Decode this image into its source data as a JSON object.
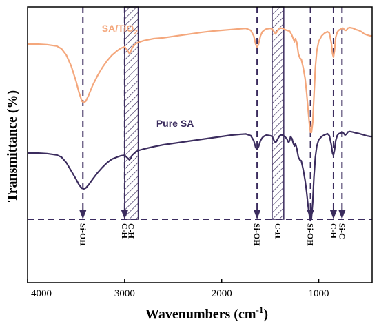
{
  "chart_data": {
    "type": "line",
    "xlabel": "Wavenumbers (cm",
    "xlabel_sup": "-1",
    "xlabel_end": ")",
    "ylabel": "Transmittance (%)",
    "xlim": [
      4000,
      450
    ],
    "xticks": [
      {
        "value": 4000,
        "label": "4000"
      },
      {
        "value": 3000,
        "label": "3000"
      },
      {
        "value": 2000,
        "label": "2000"
      },
      {
        "value": 1000,
        "label": "1000"
      }
    ],
    "y_axis_values_shown": false,
    "colors": {
      "sa_tio2": "#F4A77C",
      "pure_sa": "#3B2C5E",
      "guide": "#3B2C5E"
    },
    "series": [
      {
        "key": "sa_tio2",
        "name": "SA/TiO",
        "name_sub": "2",
        "label_at": 3050,
        "points": [
          [
            4000,
            86.5
          ],
          [
            3900,
            86.5
          ],
          [
            3800,
            86.3
          ],
          [
            3700,
            85.8
          ],
          [
            3650,
            84.8
          ],
          [
            3600,
            82.5
          ],
          [
            3550,
            78.5
          ],
          [
            3500,
            73
          ],
          [
            3470,
            69
          ],
          [
            3440,
            65.8
          ],
          [
            3420,
            65.3
          ],
          [
            3400,
            65.8
          ],
          [
            3370,
            68
          ],
          [
            3330,
            71.5
          ],
          [
            3280,
            75
          ],
          [
            3230,
            78
          ],
          [
            3180,
            80.5
          ],
          [
            3130,
            82.5
          ],
          [
            3080,
            84
          ],
          [
            3040,
            85
          ],
          [
            3000,
            85.5
          ],
          [
            2970,
            84.2
          ],
          [
            2950,
            83
          ],
          [
            2935,
            84
          ],
          [
            2920,
            85.3
          ],
          [
            2880,
            86.8
          ],
          [
            2850,
            87.2
          ],
          [
            2800,
            87.8
          ],
          [
            2700,
            88.5
          ],
          [
            2600,
            88.8
          ],
          [
            2500,
            89.3
          ],
          [
            2400,
            89.8
          ],
          [
            2300,
            90.3
          ],
          [
            2200,
            90.8
          ],
          [
            2100,
            91.2
          ],
          [
            2000,
            91.5
          ],
          [
            1900,
            91.8
          ],
          [
            1800,
            92.1
          ],
          [
            1750,
            92.2
          ],
          [
            1700,
            91.5
          ],
          [
            1670,
            89.5
          ],
          [
            1650,
            86.5
          ],
          [
            1635,
            85.3
          ],
          [
            1620,
            86.5
          ],
          [
            1600,
            89.5
          ],
          [
            1580,
            91
          ],
          [
            1560,
            91.6
          ],
          [
            1540,
            92
          ],
          [
            1500,
            92.2
          ],
          [
            1480,
            92
          ],
          [
            1460,
            91
          ],
          [
            1445,
            90.2
          ],
          [
            1430,
            91
          ],
          [
            1410,
            92
          ],
          [
            1390,
            92.3
          ],
          [
            1370,
            92.2
          ],
          [
            1350,
            91.8
          ],
          [
            1330,
            91.5
          ],
          [
            1300,
            91.2
          ],
          [
            1280,
            90
          ],
          [
            1262,
            88.5
          ],
          [
            1250,
            87.3
          ],
          [
            1240,
            88.5
          ],
          [
            1225,
            87
          ],
          [
            1210,
            83
          ],
          [
            1195,
            81.5
          ],
          [
            1180,
            81
          ],
          [
            1160,
            78
          ],
          [
            1140,
            74
          ],
          [
            1125,
            69
          ],
          [
            1110,
            63
          ],
          [
            1095,
            57
          ],
          [
            1085,
            54.5
          ],
          [
            1075,
            54.5
          ],
          [
            1062,
            58
          ],
          [
            1050,
            67
          ],
          [
            1035,
            78
          ],
          [
            1020,
            84
          ],
          [
            1000,
            87.5
          ],
          [
            970,
            89.5
          ],
          [
            940,
            90.5
          ],
          [
            910,
            91
          ],
          [
            890,
            90.5
          ],
          [
            870,
            87
          ],
          [
            858,
            83
          ],
          [
            848,
            81.8
          ],
          [
            838,
            84
          ],
          [
            825,
            89
          ],
          [
            810,
            90.8
          ],
          [
            795,
            91.5
          ],
          [
            770,
            92
          ],
          [
            750,
            92.3
          ],
          [
            730,
            91.5
          ],
          [
            715,
            91.5
          ],
          [
            700,
            92.3
          ],
          [
            680,
            92.5
          ],
          [
            650,
            92.3
          ],
          [
            620,
            91.8
          ],
          [
            590,
            91.5
          ],
          [
            560,
            91
          ],
          [
            530,
            90.2
          ],
          [
            500,
            89.8
          ],
          [
            470,
            89.5
          ],
          [
            450,
            89.5
          ]
        ]
      },
      {
        "key": "pure_sa",
        "name": "Pure SA",
        "label_at": 2480,
        "points": [
          [
            4000,
            47
          ],
          [
            3900,
            47
          ],
          [
            3800,
            46.8
          ],
          [
            3700,
            46.3
          ],
          [
            3650,
            45.5
          ],
          [
            3600,
            43.5
          ],
          [
            3550,
            40.5
          ],
          [
            3500,
            37.5
          ],
          [
            3470,
            35.5
          ],
          [
            3440,
            34.2
          ],
          [
            3420,
            34
          ],
          [
            3400,
            34.3
          ],
          [
            3370,
            35.5
          ],
          [
            3330,
            37.5
          ],
          [
            3280,
            39.8
          ],
          [
            3230,
            41.8
          ],
          [
            3180,
            43.5
          ],
          [
            3130,
            44.8
          ],
          [
            3080,
            45.5
          ],
          [
            3040,
            46
          ],
          [
            3000,
            46.2
          ],
          [
            2970,
            45.2
          ],
          [
            2950,
            44.5
          ],
          [
            2935,
            45.2
          ],
          [
            2920,
            46.3
          ],
          [
            2880,
            47.5
          ],
          [
            2850,
            48
          ],
          [
            2800,
            48.5
          ],
          [
            2700,
            49.3
          ],
          [
            2600,
            50
          ],
          [
            2500,
            50.5
          ],
          [
            2400,
            51
          ],
          [
            2300,
            51.5
          ],
          [
            2200,
            52
          ],
          [
            2100,
            52.5
          ],
          [
            2000,
            53
          ],
          [
            1900,
            53.5
          ],
          [
            1800,
            53.8
          ],
          [
            1750,
            53.9
          ],
          [
            1700,
            53.3
          ],
          [
            1670,
            51.5
          ],
          [
            1650,
            49
          ],
          [
            1635,
            48.3
          ],
          [
            1620,
            49.3
          ],
          [
            1600,
            51.5
          ],
          [
            1580,
            52.6
          ],
          [
            1560,
            53.2
          ],
          [
            1540,
            53.5
          ],
          [
            1500,
            53.3
          ],
          [
            1480,
            53
          ],
          [
            1460,
            51.5
          ],
          [
            1445,
            50.8
          ],
          [
            1430,
            51.5
          ],
          [
            1410,
            53
          ],
          [
            1390,
            53.6
          ],
          [
            1370,
            53.5
          ],
          [
            1350,
            53
          ],
          [
            1330,
            52.2
          ],
          [
            1310,
            50.8
          ],
          [
            1300,
            51.5
          ],
          [
            1290,
            53
          ],
          [
            1275,
            52.2
          ],
          [
            1262,
            50.5
          ],
          [
            1250,
            49.5
          ],
          [
            1240,
            50.5
          ],
          [
            1225,
            48.5
          ],
          [
            1210,
            45.5
          ],
          [
            1195,
            44.5
          ],
          [
            1180,
            44.2
          ],
          [
            1160,
            41
          ],
          [
            1140,
            37
          ],
          [
            1125,
            33
          ],
          [
            1110,
            28
          ],
          [
            1095,
            24
          ],
          [
            1085,
            22.5
          ],
          [
            1075,
            23.5
          ],
          [
            1062,
            29
          ],
          [
            1050,
            38
          ],
          [
            1035,
            45.5
          ],
          [
            1020,
            49.5
          ],
          [
            1000,
            51.8
          ],
          [
            970,
            53
          ],
          [
            940,
            53.6
          ],
          [
            910,
            54
          ],
          [
            890,
            53.3
          ],
          [
            870,
            50
          ],
          [
            858,
            47
          ],
          [
            848,
            46.2
          ],
          [
            838,
            48
          ],
          [
            825,
            51.5
          ],
          [
            810,
            53.3
          ],
          [
            795,
            54
          ],
          [
            770,
            54.3
          ],
          [
            750,
            54.5
          ],
          [
            730,
            53.5
          ],
          [
            715,
            53.8
          ],
          [
            700,
            54.6
          ],
          [
            680,
            54.8
          ],
          [
            650,
            54.6
          ],
          [
            620,
            54.3
          ],
          [
            590,
            54.1
          ],
          [
            560,
            53.8
          ],
          [
            530,
            53.5
          ],
          [
            500,
            53.2
          ],
          [
            470,
            53
          ],
          [
            450,
            53
          ]
        ]
      }
    ],
    "peaks": [
      {
        "x": 3430,
        "label": "Si-OH"
      },
      {
        "x": 3000,
        "label": "C-H"
      },
      {
        "x": 1635,
        "label": "Si-OH"
      },
      {
        "x": 1085,
        "label": "Si-OH"
      },
      {
        "x": 848,
        "label": "C-H"
      },
      {
        "x": 760,
        "label": "Si-C"
      }
    ],
    "hatched_bands": [
      {
        "from": 3000,
        "to": 2860,
        "label_x": 2930,
        "label": "C-H"
      },
      {
        "from": 1480,
        "to": 1360,
        "label_x": 1420,
        "label": "C-H"
      }
    ]
  }
}
